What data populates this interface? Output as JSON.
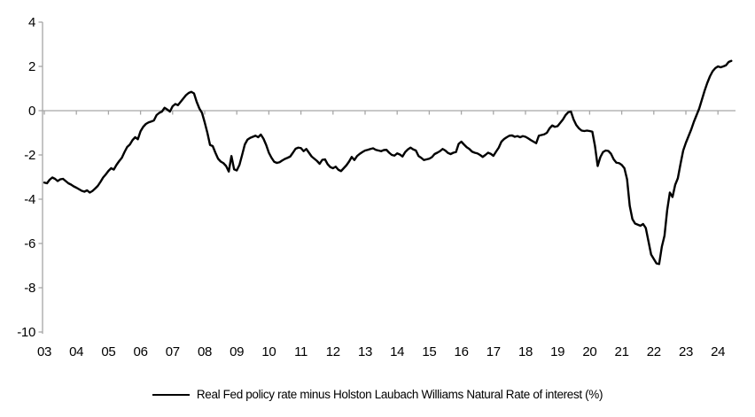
{
  "chart_data": {
    "type": "line",
    "title": "",
    "xlabel": "",
    "ylabel": "",
    "ylim": [
      -10,
      4
    ],
    "y_ticks": [
      4,
      2,
      0,
      -2,
      -4,
      -6,
      -8,
      -10
    ],
    "x_tick_labels": [
      "03",
      "04",
      "05",
      "06",
      "07",
      "08",
      "09",
      "10",
      "11",
      "12",
      "13",
      "14",
      "15",
      "16",
      "17",
      "18",
      "19",
      "20",
      "21",
      "22",
      "23",
      "24"
    ],
    "x_start_year": 2003,
    "x_frequency": "monthly",
    "grid": false,
    "zero_axis": true,
    "axis_color": "#a6a6a6",
    "legend_position": "bottom-center",
    "series": [
      {
        "name": "Real Fed policy rate minus Holston Laubach Williams Natural Rate of interest (%)",
        "color": "#000000",
        "values": [
          -3.25,
          -3.28,
          -3.12,
          -3.02,
          -3.08,
          -3.18,
          -3.1,
          -3.08,
          -3.18,
          -3.28,
          -3.34,
          -3.42,
          -3.48,
          -3.55,
          -3.62,
          -3.66,
          -3.6,
          -3.7,
          -3.63,
          -3.52,
          -3.4,
          -3.22,
          -3.02,
          -2.88,
          -2.72,
          -2.6,
          -2.66,
          -2.45,
          -2.28,
          -2.13,
          -1.87,
          -1.64,
          -1.53,
          -1.33,
          -1.2,
          -1.29,
          -0.93,
          -0.73,
          -0.6,
          -0.53,
          -0.49,
          -0.44,
          -0.2,
          -0.1,
          -0.04,
          0.13,
          0.05,
          -0.04,
          0.2,
          0.3,
          0.25,
          0.4,
          0.55,
          0.7,
          0.8,
          0.85,
          0.78,
          0.4,
          0.1,
          -0.1,
          -0.53,
          -1.0,
          -1.55,
          -1.6,
          -1.9,
          -2.17,
          -2.3,
          -2.37,
          -2.5,
          -2.75,
          -2.05,
          -2.65,
          -2.7,
          -2.45,
          -2.0,
          -1.53,
          -1.31,
          -1.23,
          -1.18,
          -1.13,
          -1.2,
          -1.08,
          -1.27,
          -1.55,
          -1.9,
          -2.13,
          -2.31,
          -2.36,
          -2.33,
          -2.25,
          -2.18,
          -2.13,
          -2.07,
          -1.9,
          -1.72,
          -1.67,
          -1.69,
          -1.83,
          -1.73,
          -1.9,
          -2.07,
          -2.17,
          -2.27,
          -2.4,
          -2.22,
          -2.2,
          -2.42,
          -2.55,
          -2.6,
          -2.53,
          -2.67,
          -2.73,
          -2.6,
          -2.47,
          -2.3,
          -2.09,
          -2.23,
          -2.05,
          -1.95,
          -1.87,
          -1.8,
          -1.77,
          -1.73,
          -1.7,
          -1.77,
          -1.8,
          -1.83,
          -1.78,
          -1.77,
          -1.9,
          -2.0,
          -2.03,
          -1.93,
          -1.98,
          -2.07,
          -1.87,
          -1.75,
          -1.67,
          -1.75,
          -1.8,
          -2.05,
          -2.13,
          -2.23,
          -2.2,
          -2.17,
          -2.1,
          -1.96,
          -1.9,
          -1.83,
          -1.73,
          -1.8,
          -1.91,
          -1.96,
          -1.9,
          -1.87,
          -1.5,
          -1.4,
          -1.53,
          -1.65,
          -1.73,
          -1.85,
          -1.9,
          -1.93,
          -2.0,
          -2.09,
          -2.0,
          -1.9,
          -1.95,
          -2.04,
          -1.85,
          -1.67,
          -1.4,
          -1.28,
          -1.2,
          -1.13,
          -1.12,
          -1.18,
          -1.15,
          -1.2,
          -1.15,
          -1.18,
          -1.25,
          -1.33,
          -1.4,
          -1.47,
          -1.13,
          -1.1,
          -1.07,
          -1.0,
          -0.8,
          -0.67,
          -0.73,
          -0.7,
          -0.55,
          -0.4,
          -0.2,
          -0.07,
          -0.04,
          -0.4,
          -0.65,
          -0.8,
          -0.9,
          -0.92,
          -0.9,
          -0.92,
          -0.95,
          -1.6,
          -2.5,
          -2.1,
          -1.87,
          -1.8,
          -1.82,
          -1.95,
          -2.2,
          -2.35,
          -2.37,
          -2.45,
          -2.6,
          -3.1,
          -4.3,
          -4.9,
          -5.1,
          -5.15,
          -5.2,
          -5.12,
          -5.3,
          -5.9,
          -6.5,
          -6.7,
          -6.9,
          -6.93,
          -6.15,
          -5.65,
          -4.5,
          -3.7,
          -3.9,
          -3.35,
          -3.05,
          -2.4,
          -1.8,
          -1.45,
          -1.15,
          -0.85,
          -0.5,
          -0.2,
          0.1,
          0.5,
          0.9,
          1.25,
          1.55,
          1.78,
          1.92,
          2.0,
          1.96,
          2.0,
          2.05,
          2.2,
          2.25
        ]
      }
    ]
  }
}
